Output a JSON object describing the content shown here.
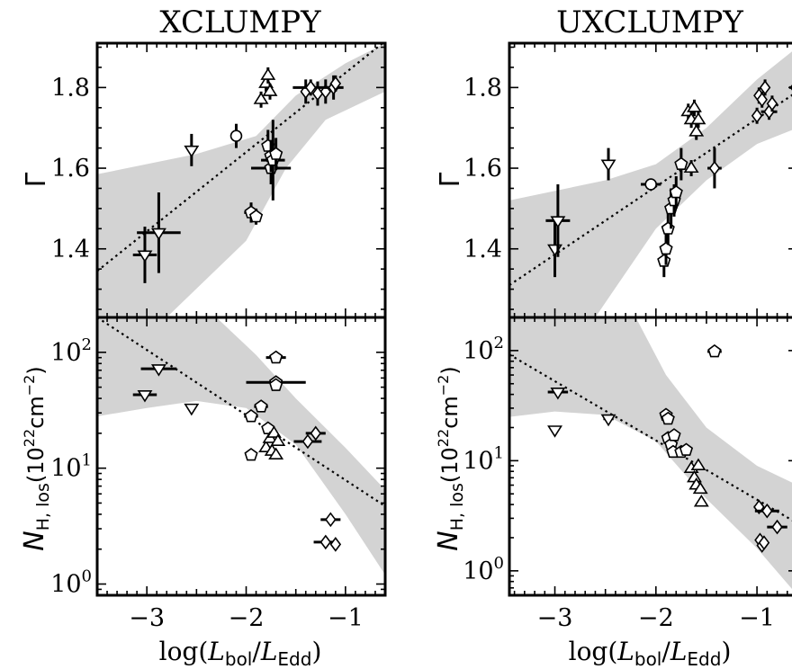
{
  "figure": {
    "titles": [
      "XCLUMPY",
      "UXCLUMPY"
    ],
    "xlabel_html": "log(L_bol/L_Edd)",
    "xlabel_main": "log(",
    "xlabel_L1": "L",
    "xlabel_sub1": "bol",
    "xlabel_slash": "/",
    "xlabel_L2": "L",
    "xlabel_sub2": "Edd",
    "xlabel_close": ")",
    "ylabel_top": "Γ",
    "ylabel_bottom_N": "N",
    "ylabel_bottom_sub": "H, los",
    "ylabel_bottom_unit": "(10",
    "ylabel_bottom_exp": "22",
    "ylabel_bottom_unit2": "cm",
    "ylabel_bottom_exp2": "−2",
    "ylabel_bottom_close": ")",
    "colors": {
      "band": "#d3d3d3",
      "ink": "#000000",
      "marker_fill": "#ffffff"
    }
  },
  "chart_data": [
    {
      "panel": "XCLUMPY-top",
      "type": "scatter",
      "title": "XCLUMPY",
      "xlim": [
        -3.5,
        -0.6
      ],
      "ylim": [
        1.23,
        1.91
      ],
      "xticks": [
        -3,
        -2,
        -1
      ],
      "yticks": [
        1.4,
        1.6,
        1.8
      ],
      "ytick_labels": [
        "1.4",
        "1.6",
        "1.8"
      ],
      "log_y": false,
      "fit_line": [
        [
          -3.5,
          1.345
        ],
        [
          -0.6,
          1.915
        ]
      ],
      "band_upper": [
        [
          -3.5,
          1.585
        ],
        [
          -2.5,
          1.635
        ],
        [
          -1.9,
          1.68
        ],
        [
          -1.5,
          1.78
        ],
        [
          -1.0,
          1.86
        ],
        [
          -0.6,
          1.91
        ]
      ],
      "band_lower": [
        [
          -3.5,
          1.23
        ],
        [
          -2.8,
          1.23
        ],
        [
          -2.0,
          1.42
        ],
        [
          -1.6,
          1.6
        ],
        [
          -1.2,
          1.72
        ],
        [
          -0.6,
          1.79
        ]
      ],
      "points": [
        {
          "x": -3.02,
          "y": 1.385,
          "m": "tri-down",
          "xe": 0.12,
          "ye": 0.07
        },
        {
          "x": -2.88,
          "y": 1.44,
          "m": "tri-down",
          "xe": 0.22,
          "ye": 0.1
        },
        {
          "x": -2.55,
          "y": 1.645,
          "m": "tri-down",
          "xe": 0.0,
          "ye": 0.04
        },
        {
          "x": -2.1,
          "y": 1.68,
          "m": "circle",
          "xe": 0.0,
          "ye": 0.03
        },
        {
          "x": -1.95,
          "y": 1.49,
          "m": "pentagon",
          "xe": 0.07,
          "ye": 0.025
        },
        {
          "x": -1.9,
          "y": 1.48,
          "m": "pentagon",
          "xe": 0.0,
          "ye": 0.02
        },
        {
          "x": -1.85,
          "y": 1.77,
          "m": "tri-up",
          "xe": 0.0,
          "ye": 0.02
        },
        {
          "x": -1.8,
          "y": 1.81,
          "m": "tri-up",
          "xe": 0.0,
          "ye": 0.02
        },
        {
          "x": -1.78,
          "y": 1.83,
          "m": "tri-up",
          "xe": 0.0,
          "ye": 0.02
        },
        {
          "x": -1.76,
          "y": 1.79,
          "m": "tri-up",
          "xe": 0.0,
          "ye": 0.02
        },
        {
          "x": -1.75,
          "y": 1.6,
          "m": "pentagon",
          "xe": 0.2,
          "ye": 0.04
        },
        {
          "x": -1.78,
          "y": 1.655,
          "m": "pentagon",
          "xe": 0.0,
          "ye": 0.04
        },
        {
          "x": -1.75,
          "y": 1.63,
          "m": "pentagon",
          "xe": 0.0,
          "ye": 0.04
        },
        {
          "x": -1.73,
          "y": 1.62,
          "m": "pentagon",
          "xe": 0.12,
          "ye": 0.1
        },
        {
          "x": -1.7,
          "y": 1.635,
          "m": "pentagon",
          "xe": 0.0,
          "ye": 0.04
        },
        {
          "x": -1.4,
          "y": 1.79,
          "m": "diamond",
          "xe": 0.0,
          "ye": 0.03
        },
        {
          "x": -1.35,
          "y": 1.8,
          "m": "diamond",
          "xe": 0.18,
          "ye": 0.02
        },
        {
          "x": -1.28,
          "y": 1.785,
          "m": "diamond",
          "xe": 0.0,
          "ye": 0.03
        },
        {
          "x": -1.2,
          "y": 1.79,
          "m": "diamond",
          "xe": 0.0,
          "ye": 0.03
        },
        {
          "x": -1.12,
          "y": 1.8,
          "m": "diamond",
          "xe": 0.1,
          "ye": 0.03
        },
        {
          "x": -1.1,
          "y": 1.81,
          "m": "diamond",
          "xe": 0.0,
          "ye": 0.02
        }
      ]
    },
    {
      "panel": "XCLUMPY-bottom",
      "type": "scatter",
      "xlim": [
        -3.5,
        -0.6
      ],
      "ylim": [
        0.8,
        200
      ],
      "xticks": [
        -3,
        -2,
        -1
      ],
      "xtick_labels": [
        "−3",
        "−2",
        "−1"
      ],
      "yticks": [
        1,
        10,
        100
      ],
      "ytick_base": "10",
      "ytick_exps": [
        "0",
        "1",
        "2"
      ],
      "log_y": true,
      "fit_line": [
        [
          -3.5,
          200
        ],
        [
          -0.6,
          4.7
        ]
      ],
      "band_upper": [
        [
          -3.5,
          200
        ],
        [
          -2.3,
          200
        ],
        [
          -1.9,
          95
        ],
        [
          -1.5,
          40
        ],
        [
          -1.0,
          15
        ],
        [
          -0.6,
          6.5
        ]
      ],
      "band_lower": [
        [
          -3.5,
          28
        ],
        [
          -3.0,
          33
        ],
        [
          -2.5,
          38
        ],
        [
          -2.0,
          33
        ],
        [
          -1.5,
          16
        ],
        [
          -1.0,
          4.0
        ],
        [
          -0.6,
          1.2
        ]
      ],
      "points": [
        {
          "x": -2.88,
          "y": 72,
          "m": "tri-down",
          "xe": 0.18,
          "ye": 0
        },
        {
          "x": -3.02,
          "y": 43,
          "m": "tri-down",
          "xe": 0.12,
          "ye": 0
        },
        {
          "x": -2.55,
          "y": 33,
          "m": "tri-down",
          "xe": 0.04,
          "ye": 0
        },
        {
          "x": -1.95,
          "y": 28,
          "m": "pentagon",
          "xe": 0.07,
          "ye": 0
        },
        {
          "x": -1.95,
          "y": 13,
          "m": "pentagon",
          "xe": 0.0,
          "ye": 0
        },
        {
          "x": -1.85,
          "y": 34,
          "m": "pentagon",
          "xe": 0.07,
          "ye": 0
        },
        {
          "x": -1.7,
          "y": 90,
          "m": "pentagon",
          "xe": 0.1,
          "ye": 0
        },
        {
          "x": -1.7,
          "y": 55,
          "m": "pentagon",
          "xe": 0.3,
          "ye": 0
        },
        {
          "x": -1.7,
          "y": 52,
          "m": "pentagon",
          "xe": 0.05,
          "ye": 0
        },
        {
          "x": -1.78,
          "y": 22,
          "m": "pentagon",
          "xe": 0.0,
          "ye": 0
        },
        {
          "x": -1.8,
          "y": 15,
          "m": "tri-up",
          "xe": 0.0,
          "ye": 0
        },
        {
          "x": -1.76,
          "y": 18,
          "m": "tri-up",
          "xe": 0.0,
          "ye": 0
        },
        {
          "x": -1.74,
          "y": 14,
          "m": "tri-up",
          "xe": 0.0,
          "ye": 0
        },
        {
          "x": -1.72,
          "y": 20,
          "m": "tri-up",
          "xe": 0.0,
          "ye": 0
        },
        {
          "x": -1.7,
          "y": 13,
          "m": "tri-up",
          "xe": 0.0,
          "ye": 0
        },
        {
          "x": -1.68,
          "y": 17,
          "m": "tri-up",
          "xe": 0.0,
          "ye": 0
        },
        {
          "x": -1.38,
          "y": 17,
          "m": "diamond",
          "xe": 0.14,
          "ye": 0
        },
        {
          "x": -1.3,
          "y": 20,
          "m": "diamond",
          "xe": 0.1,
          "ye": 0
        },
        {
          "x": -1.15,
          "y": 3.6,
          "m": "diamond",
          "xe": 0.1,
          "ye": 0
        },
        {
          "x": -1.2,
          "y": 2.3,
          "m": "diamond",
          "xe": 0.12,
          "ye": 0
        },
        {
          "x": -1.1,
          "y": 2.2,
          "m": "diamond",
          "xe": 0.0,
          "ye": 0
        }
      ]
    },
    {
      "panel": "UXCLUMPY-top",
      "type": "scatter",
      "title": "UXCLUMPY",
      "xlim": [
        -3.45,
        -0.6
      ],
      "ylim": [
        1.23,
        1.91
      ],
      "xticks": [
        -3,
        -2,
        -1
      ],
      "yticks": [
        1.4,
        1.6,
        1.8
      ],
      "ytick_labels": [
        "1.4",
        "1.6",
        "1.8"
      ],
      "log_y": false,
      "fit_line": [
        [
          -3.45,
          1.31
        ],
        [
          -0.6,
          1.79
        ]
      ],
      "band_upper": [
        [
          -3.45,
          1.52
        ],
        [
          -2.5,
          1.57
        ],
        [
          -2.0,
          1.61
        ],
        [
          -1.5,
          1.7
        ],
        [
          -1.0,
          1.82
        ],
        [
          -0.6,
          1.9
        ]
      ],
      "band_lower": [
        [
          -3.45,
          1.23
        ],
        [
          -2.6,
          1.23
        ],
        [
          -2.0,
          1.45
        ],
        [
          -1.5,
          1.57
        ],
        [
          -1.0,
          1.66
        ],
        [
          -0.6,
          1.7
        ]
      ],
      "points": [
        {
          "x": -3.0,
          "y": 1.4,
          "m": "tri-down",
          "xe": 0.0,
          "ye": 0.07
        },
        {
          "x": -2.97,
          "y": 1.47,
          "m": "tri-down",
          "xe": 0.12,
          "ye": 0.09
        },
        {
          "x": -2.47,
          "y": 1.61,
          "m": "tri-down",
          "xe": 0.0,
          "ye": 0.04
        },
        {
          "x": -2.05,
          "y": 1.56,
          "m": "circle",
          "xe": 0.1,
          "ye": 0.0
        },
        {
          "x": -1.92,
          "y": 1.37,
          "m": "pentagon",
          "xe": 0.0,
          "ye": 0.04
        },
        {
          "x": -1.9,
          "y": 1.4,
          "m": "pentagon",
          "xe": 0.0,
          "ye": 0.04
        },
        {
          "x": -1.88,
          "y": 1.45,
          "m": "pentagon",
          "xe": 0.0,
          "ye": 0.04
        },
        {
          "x": -1.85,
          "y": 1.5,
          "m": "pentagon",
          "xe": 0.0,
          "ye": 0.05
        },
        {
          "x": -1.82,
          "y": 1.52,
          "m": "pentagon",
          "xe": 0.0,
          "ye": 0.04
        },
        {
          "x": -1.8,
          "y": 1.54,
          "m": "pentagon",
          "xe": 0.0,
          "ye": 0.04
        },
        {
          "x": -1.75,
          "y": 1.61,
          "m": "pentagon",
          "xe": 0.0,
          "ye": 0.04
        },
        {
          "x": -1.68,
          "y": 1.74,
          "m": "tri-up",
          "xe": 0.0,
          "ye": 0.02
        },
        {
          "x": -1.65,
          "y": 1.72,
          "m": "tri-up",
          "xe": 0.0,
          "ye": 0.02
        },
        {
          "x": -1.62,
          "y": 1.75,
          "m": "tri-up",
          "xe": 0.0,
          "ye": 0.02
        },
        {
          "x": -1.6,
          "y": 1.69,
          "m": "tri-up",
          "xe": 0.0,
          "ye": 0.02
        },
        {
          "x": -1.58,
          "y": 1.72,
          "m": "tri-up",
          "xe": 0.0,
          "ye": 0.02
        },
        {
          "x": -1.65,
          "y": 1.6,
          "m": "tri-up",
          "xe": 0.0,
          "ye": 0.02
        },
        {
          "x": -1.42,
          "y": 1.6,
          "m": "diamond",
          "xe": 0.07,
          "ye": 0.05
        },
        {
          "x": -1.0,
          "y": 1.73,
          "m": "diamond",
          "xe": 0.0,
          "ye": 0.02
        },
        {
          "x": -0.98,
          "y": 1.78,
          "m": "diamond",
          "xe": 0.0,
          "ye": 0.02
        },
        {
          "x": -0.95,
          "y": 1.77,
          "m": "diamond",
          "xe": 0.0,
          "ye": 0.02
        },
        {
          "x": -0.92,
          "y": 1.8,
          "m": "diamond",
          "xe": 0.0,
          "ye": 0.02
        },
        {
          "x": -0.88,
          "y": 1.74,
          "m": "diamond",
          "xe": 0.08,
          "ye": 0.02
        },
        {
          "x": -0.85,
          "y": 1.76,
          "m": "diamond",
          "xe": 0.0,
          "ye": 0.02
        },
        {
          "x": -0.62,
          "y": 1.8,
          "m": "diamond",
          "xe": 0.06,
          "ye": 0.0
        }
      ]
    },
    {
      "panel": "UXCLUMPY-bottom",
      "type": "scatter",
      "xlim": [
        -3.45,
        -0.6
      ],
      "ylim": [
        0.6,
        200
      ],
      "xticks": [
        -3,
        -2,
        -1
      ],
      "xtick_labels": [
        "−3",
        "−2",
        "−1"
      ],
      "yticks": [
        1,
        10,
        100
      ],
      "ytick_base": "10",
      "ytick_exps": [
        "0",
        "1",
        "2"
      ],
      "log_y": true,
      "fit_line": [
        [
          -3.45,
          92
        ],
        [
          -0.6,
          2.7
        ]
      ],
      "band_upper": [
        [
          -3.45,
          200
        ],
        [
          -2.2,
          200
        ],
        [
          -1.9,
          60
        ],
        [
          -1.5,
          20
        ],
        [
          -1.0,
          9.0
        ],
        [
          -0.6,
          6.0
        ]
      ],
      "band_lower": [
        [
          -3.45,
          25
        ],
        [
          -3.0,
          28
        ],
        [
          -2.5,
          26
        ],
        [
          -2.0,
          15
        ],
        [
          -1.5,
          4.5
        ],
        [
          -1.0,
          1.6
        ],
        [
          -0.6,
          0.6
        ]
      ],
      "points": [
        {
          "x": -2.97,
          "y": 42,
          "m": "tri-down",
          "xe": 0.1,
          "ye": 0
        },
        {
          "x": -3.0,
          "y": 19,
          "m": "tri-down",
          "xe": 0.0,
          "ye": 0
        },
        {
          "x": -2.47,
          "y": 24,
          "m": "tri-down",
          "xe": 0.05,
          "ye": 0
        },
        {
          "x": -1.9,
          "y": 26,
          "m": "pentagon",
          "xe": 0.0,
          "ye": 0
        },
        {
          "x": -1.88,
          "y": 24,
          "m": "pentagon",
          "xe": 0.0,
          "ye": 0
        },
        {
          "x": -1.88,
          "y": 16,
          "m": "pentagon",
          "xe": 0.0,
          "ye": 0
        },
        {
          "x": -1.85,
          "y": 14,
          "m": "pentagon",
          "xe": 0.0,
          "ye": 0
        },
        {
          "x": -1.82,
          "y": 17,
          "m": "pentagon",
          "xe": 0.0,
          "ye": 0
        },
        {
          "x": -1.83,
          "y": 12,
          "m": "pentagon",
          "xe": 0.0,
          "ye": 0
        },
        {
          "x": -1.75,
          "y": 12,
          "m": "pentagon",
          "xe": 0.0,
          "ye": 0
        },
        {
          "x": -1.7,
          "y": 12.5,
          "m": "pentagon",
          "xe": 0.0,
          "ye": 0
        },
        {
          "x": -1.65,
          "y": 8.5,
          "m": "tri-up",
          "xe": 0.0,
          "ye": 0
        },
        {
          "x": -1.62,
          "y": 7.0,
          "m": "tri-up",
          "xe": 0.0,
          "ye": 0
        },
        {
          "x": -1.6,
          "y": 6.0,
          "m": "tri-up",
          "xe": 0.0,
          "ye": 0
        },
        {
          "x": -1.58,
          "y": 9.0,
          "m": "tri-up",
          "xe": 0.0,
          "ye": 0
        },
        {
          "x": -1.56,
          "y": 5.5,
          "m": "tri-up",
          "xe": 0.0,
          "ye": 0
        },
        {
          "x": -1.55,
          "y": 4.2,
          "m": "tri-up",
          "xe": 0.0,
          "ye": 0
        },
        {
          "x": -1.42,
          "y": 98,
          "m": "pentagon",
          "xe": 0.07,
          "ye": 0
        },
        {
          "x": -0.98,
          "y": 3.8,
          "m": "diamond",
          "xe": 0.05,
          "ye": 0
        },
        {
          "x": -0.9,
          "y": 3.5,
          "m": "diamond",
          "xe": 0.12,
          "ye": 0
        },
        {
          "x": -0.8,
          "y": 2.5,
          "m": "diamond",
          "xe": 0.1,
          "ye": 0
        },
        {
          "x": -0.97,
          "y": 1.9,
          "m": "diamond",
          "xe": 0.0,
          "ye": 0
        },
        {
          "x": -0.95,
          "y": 1.7,
          "m": "diamond",
          "xe": 0.0,
          "ye": 0
        },
        {
          "x": -0.93,
          "y": 1.8,
          "m": "diamond",
          "xe": 0.0,
          "ye": 0
        }
      ]
    }
  ]
}
